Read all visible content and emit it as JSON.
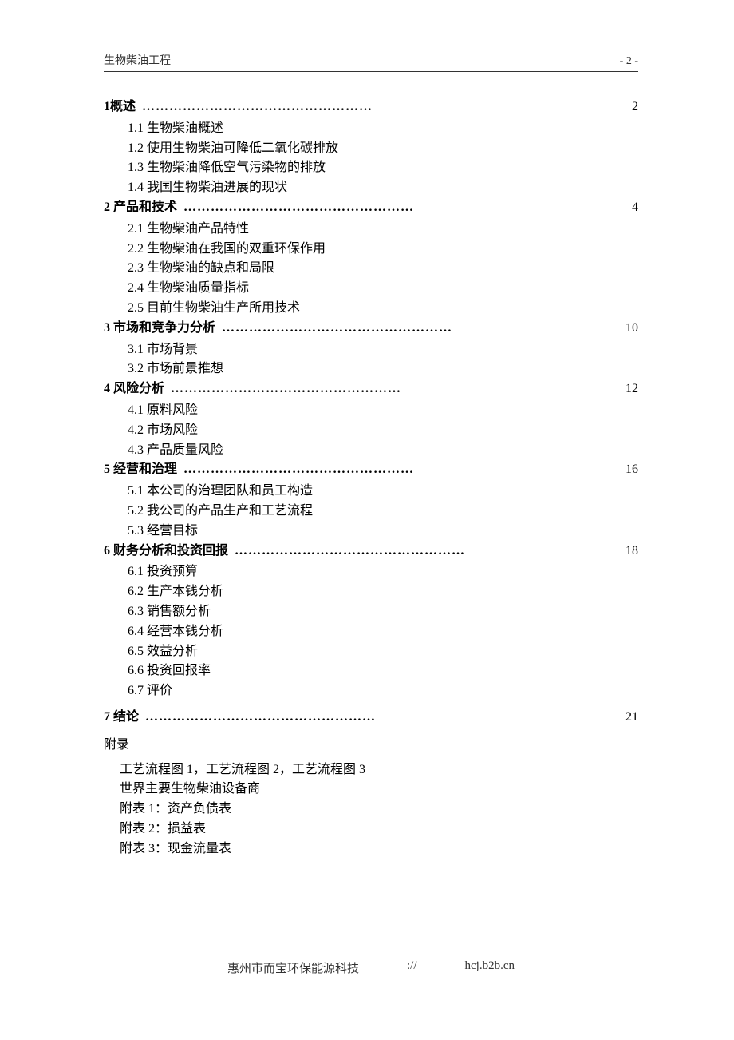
{
  "header": {
    "left": "生物柴油工程",
    "right": "- 2 -"
  },
  "sections": [
    {
      "num": "1",
      "title": "概述",
      "page": "2",
      "subs": [
        "1.1 生物柴油概述",
        "1.2 使用生物柴油可降低二氧化碳排放",
        "1.3 生物柴油降低空气污染物的排放",
        "1.4 我国生物柴油进展的现状"
      ]
    },
    {
      "num": "2",
      "title": " 产品和技术",
      "page": "4",
      "subs": [
        "2.1 生物柴油产品特性",
        "2.2 生物柴油在我国的双重环保作用",
        "2.3 生物柴油的缺点和局限",
        "2.4 生物柴油质量指标",
        "2.5 目前生物柴油生产所用技术"
      ]
    },
    {
      "num": "3",
      "title": " 市场和竞争力分析",
      "page": "10",
      "subs": [
        "3.1 市场背景",
        "3.2 市场前景推想"
      ]
    },
    {
      "num": "4",
      "title": " 风险分析",
      "page": "12",
      "subs": [
        "4.1 原料风险",
        "4.2 市场风险",
        "4.3 产品质量风险"
      ]
    },
    {
      "num": "5",
      "title": " 经营和治理",
      "page": "16",
      "subs": [
        "5.1  本公司的治理团队和员工构造",
        "5.2  我公司的产品生产和工艺流程",
        "5.3  经营目标"
      ]
    },
    {
      "num": "6",
      "title": " 财务分析和投资回报",
      "page": "18",
      "subs": [
        "6.1 投资预算",
        "6.2  生产本钱分析",
        "6.3  销售额分析",
        "6.4 经营本钱分析",
        "6.5 效益分析",
        "6.6  投资回报率",
        "6.7 评价"
      ]
    },
    {
      "num": "7",
      "title": " 结论",
      "page": "21",
      "subs": [],
      "gap_before": true
    }
  ],
  "dots_fill": "……………………………………………",
  "appendix": {
    "title": "附录",
    "items": [
      "工艺流程图 1，工艺流程图 2，工艺流程图 3",
      "世界主要生物柴油设备商",
      "附表 1：资产负债表",
      "附表 2：损益表",
      "附表 3：现金流量表"
    ]
  },
  "footer": {
    "company": "惠州市而宝环保能源科技",
    "url_prefix": "://",
    "url": "hcj.b2b.cn"
  }
}
